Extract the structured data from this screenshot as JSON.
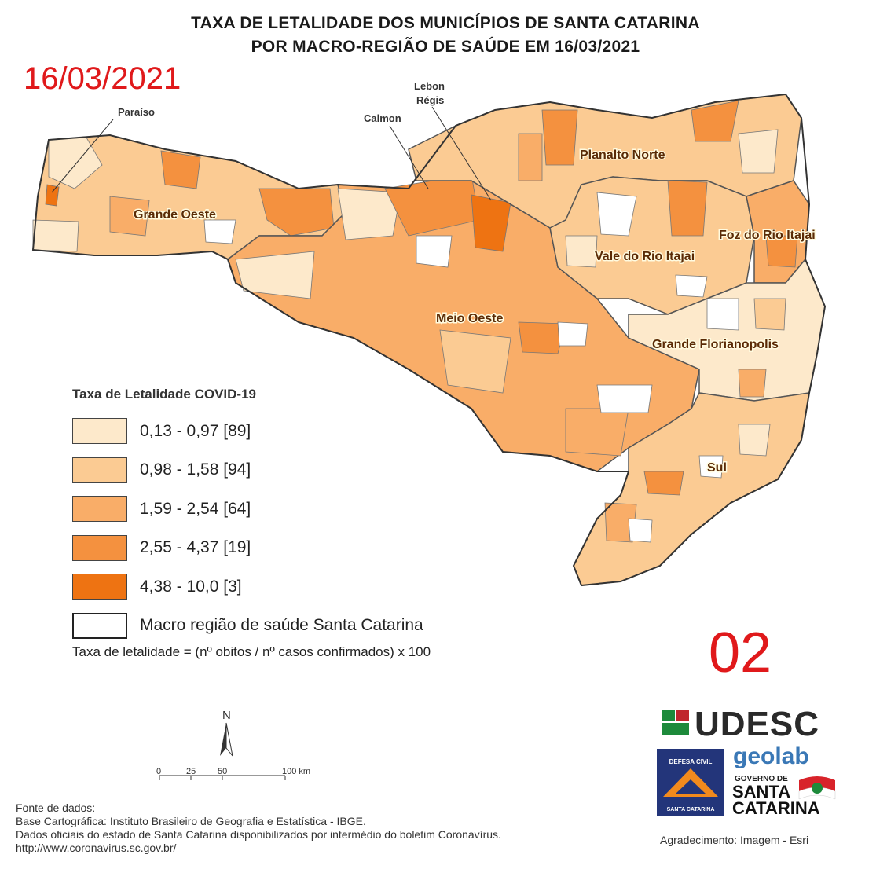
{
  "title": {
    "line1": "TAXA DE LETALIDADE DOS MUNICÍPIOS DE SANTA CATARINA",
    "line2": "POR MACRO-REGIÃO DE SAÚDE  EM 16/03/2021"
  },
  "date_stamp": "16/03/2021",
  "page_number": "02",
  "map": {
    "regions": [
      {
        "name": "Grande Oeste"
      },
      {
        "name": "Meio Oeste"
      },
      {
        "name": "Planalto Norte"
      },
      {
        "name": "Vale do Rio Itajai"
      },
      {
        "name": "Foz do Rio Itajai"
      },
      {
        "name": "Grande Florianopolis"
      },
      {
        "name": "Sul"
      }
    ],
    "callouts": [
      {
        "name": "Paraíso"
      },
      {
        "name": "Calmon"
      },
      {
        "name": "Lebon"
      },
      {
        "name": "Régis"
      }
    ]
  },
  "legend": {
    "title": "Taxa de Letalidade COVID-19",
    "classes": [
      {
        "label": "0,13 - 0,97 [89]",
        "color": "#fde9cb"
      },
      {
        "label": "0,98 - 1,58 [94]",
        "color": "#fbcb93"
      },
      {
        "label": "1,59 - 2,54 [64]",
        "color": "#f9ad68"
      },
      {
        "label": "2,55 - 4,37 [19]",
        "color": "#f4913f"
      },
      {
        "label": "4,38 - 10,0 [3]",
        "color": "#ee7312"
      }
    ],
    "boundary_label": "Macro região de saúde Santa Catarina",
    "formula": "Taxa de letalidade = (nº obitos / nº casos confirmados) x 100"
  },
  "north_arrow": {
    "label": "N"
  },
  "scale_bar": {
    "ticks": [
      "0",
      "25",
      "50",
      "100 km"
    ]
  },
  "sources": {
    "line1": "Fonte de dados:",
    "line2": "Base Cartográfica: Instituto Brasileiro de Geografia e Estatística - IBGE.",
    "line3": "Dados oficiais do estado de Santa Catarina disponibilizados por intermédio do boletim Coronavírus.",
    "line4": "http://www.coronavirus.sc.gov.br/"
  },
  "acknowledgement": "Agradecimento: Imagem - Esri",
  "logos": {
    "udesc": "UDESC",
    "defesa_top": "DEFESA CIVIL",
    "defesa_bottom": "SANTA CATARINA",
    "geolab": "geolab",
    "gov_line1": "GOVERNO DE",
    "gov_line2": "SANTA",
    "gov_line3": "CATARINA"
  }
}
